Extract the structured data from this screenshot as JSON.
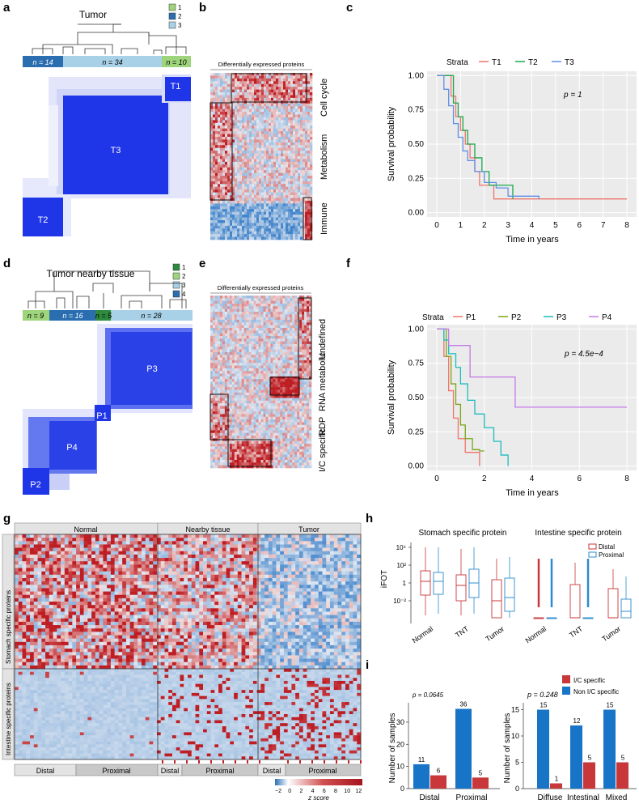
{
  "panels": {
    "a": {
      "label": "a",
      "title": "Tumor",
      "legend": [
        "1",
        "2",
        "3"
      ],
      "counts": [
        "n = 14",
        "n = 34",
        "n = 10"
      ],
      "clusters": [
        "T1",
        "T3",
        "T2"
      ]
    },
    "b": {
      "label": "b",
      "header": "Differentially expressed proteins",
      "groups": [
        "Cell cycle",
        "Metabolism",
        "Immune"
      ]
    },
    "c": {
      "label": "c",
      "strata_title": "Strata",
      "strata": [
        "T1",
        "T2",
        "T3"
      ],
      "strata_colors": [
        "#f0746b",
        "#1aa84a",
        "#5f8ee8"
      ],
      "pvalue": "p = 1",
      "ylabel": "Survival probability",
      "xlabel": "Time in years",
      "yticks": [
        "1.00",
        "0.75",
        "0.50",
        "0.25",
        "0.00"
      ],
      "xticks": [
        "0",
        "1",
        "2",
        "3",
        "4",
        "5",
        "6",
        "7",
        "8"
      ]
    },
    "d": {
      "label": "d",
      "title": "Tumor nearby tissue",
      "legend": [
        "1",
        "2",
        "3",
        "4"
      ],
      "counts": [
        "n = 9",
        "n = 16",
        "n = 5",
        "n = 28"
      ],
      "clusters": [
        "P3",
        "P1",
        "P4",
        "P2"
      ]
    },
    "e": {
      "label": "e",
      "header": "Differentially expressed proteins",
      "groups": [
        "Undefined",
        "RNA metabolic",
        "RDP",
        "I/C specific"
      ]
    },
    "f": {
      "label": "f",
      "strata_title": "Strata",
      "strata": [
        "P1",
        "P2",
        "P3",
        "P4"
      ],
      "strata_colors": [
        "#f0746b",
        "#7ba518",
        "#1cbcbc",
        "#c47be8"
      ],
      "pvalue": "p = 4.5e−4",
      "ylabel": "Survival probability",
      "xlabel": "Time in years",
      "yticks": [
        "1.00",
        "0.75",
        "0.50",
        "0.25",
        "0.00"
      ],
      "xticks": [
        "0",
        "2",
        "4",
        "6",
        "8"
      ]
    },
    "g": {
      "label": "g",
      "top": [
        "Normal",
        "Nearby tissue",
        "Tumor"
      ],
      "rowlabels": [
        "Stomach specific proteins",
        "Intestine specific proteins"
      ],
      "bottom": [
        "Distal",
        "Proximal",
        "Distal",
        "Proximal",
        "Distal",
        "Proximal"
      ],
      "colorbar_ticks": [
        "−2",
        "0",
        "2",
        "4",
        "6",
        "8",
        "10",
        "12"
      ],
      "colorbar_label": "z score"
    },
    "h": {
      "label": "h",
      "titles": [
        "Stomach specific protein",
        "Intestine specific protein"
      ],
      "legend": [
        "Distal",
        "Proximal"
      ],
      "ylabel": "iFOT",
      "yticks": [
        "10⁴",
        "10²",
        "1",
        "10⁻²"
      ],
      "xcats": [
        "Normal",
        "TNT",
        "Tumor",
        "Normal",
        "TNT",
        "Tumor"
      ]
    },
    "i": {
      "label": "i",
      "legend": [
        "I/C specific",
        "Non I/C specific"
      ],
      "pvals": [
        "p = 0.0645",
        "p = 0.248"
      ],
      "ylabel": "Number of samples",
      "yticks_left": [
        "0",
        "10",
        "20",
        "30"
      ],
      "yticks_right": [
        "0",
        "5",
        "10",
        "15"
      ]
    }
  },
  "chart_data": [
    {
      "type": "line",
      "panel": "c",
      "title": "",
      "xlabel": "Time in years",
      "ylabel": "Survival probability",
      "xlim": [
        0,
        8
      ],
      "ylim": [
        0,
        1
      ],
      "series": [
        {
          "name": "T1",
          "x": [
            0,
            0.6,
            0.8,
            1.0,
            1.2,
            1.4,
            1.6,
            1.8,
            2.0,
            2.4,
            8.0
          ],
          "y": [
            1,
            0.85,
            0.7,
            0.6,
            0.5,
            0.4,
            0.3,
            0.2,
            0.2,
            0.1,
            0.1
          ]
        },
        {
          "name": "T2",
          "x": [
            0,
            0.4,
            0.7,
            0.9,
            1.1,
            1.3,
            1.6,
            1.9,
            2.2,
            2.6,
            3.2
          ],
          "y": [
            1,
            1,
            0.8,
            0.7,
            0.6,
            0.5,
            0.4,
            0.3,
            0.2,
            0.2,
            0.1
          ]
        },
        {
          "name": "T3",
          "x": [
            0,
            0.3,
            0.5,
            0.7,
            0.9,
            1.1,
            1.3,
            1.6,
            2.0,
            2.5,
            3.0,
            4.3
          ],
          "y": [
            1,
            0.9,
            0.78,
            0.65,
            0.55,
            0.45,
            0.38,
            0.3,
            0.22,
            0.18,
            0.12,
            0.1
          ]
        }
      ]
    },
    {
      "type": "line",
      "panel": "f",
      "title": "",
      "xlabel": "Time in years",
      "ylabel": "Survival probability",
      "xlim": [
        0,
        8
      ],
      "ylim": [
        0,
        1
      ],
      "series": [
        {
          "name": "P1",
          "x": [
            0,
            0.3,
            0.5,
            0.7,
            0.9,
            1.2,
            1.6,
            1.8
          ],
          "y": [
            1,
            0.8,
            0.55,
            0.35,
            0.2,
            0.1,
            0.1,
            0
          ]
        },
        {
          "name": "P2",
          "x": [
            0,
            0.4,
            0.6,
            0.8,
            1.0,
            1.2,
            1.5,
            1.8,
            2.0
          ],
          "y": [
            1,
            0.8,
            0.6,
            0.45,
            0.3,
            0.2,
            0.12,
            0.11,
            0.11
          ]
        },
        {
          "name": "P3",
          "x": [
            0,
            0.3,
            0.5,
            0.8,
            1.0,
            1.3,
            1.6,
            2.0,
            2.4,
            2.7,
            3.0
          ],
          "y": [
            1,
            0.92,
            0.82,
            0.72,
            0.6,
            0.48,
            0.38,
            0.28,
            0.18,
            0.08,
            0
          ]
        },
        {
          "name": "P4",
          "x": [
            0,
            0.5,
            1.0,
            1.4,
            3.3,
            8.0
          ],
          "y": [
            1,
            0.88,
            0.88,
            0.65,
            0.43,
            0.43
          ]
        }
      ]
    },
    {
      "type": "bar",
      "panel": "i-left",
      "categories": [
        "Distal",
        "Proximal"
      ],
      "ylim": [
        0,
        38
      ],
      "series": [
        {
          "name": "Non I/C specific",
          "values": [
            11,
            36
          ]
        },
        {
          "name": "I/C specific",
          "values": [
            6,
            5
          ]
        }
      ],
      "labels": [
        "11",
        "6",
        "36",
        "5"
      ]
    },
    {
      "type": "bar",
      "panel": "i-right",
      "categories": [
        "Diffuse",
        "Intestinal",
        "Mixed"
      ],
      "ylim": [
        0,
        16
      ],
      "series": [
        {
          "name": "Non I/C specific",
          "values": [
            15,
            12,
            15
          ]
        },
        {
          "name": "I/C specific",
          "values": [
            1,
            5,
            5
          ]
        }
      ],
      "labels": [
        "15",
        "1",
        "12",
        "5",
        "15",
        "5"
      ]
    }
  ],
  "colors": {
    "blue": "#1432e6",
    "red": "#c01f24",
    "barBlue": "#1874c6",
    "barRed": "#c8373a",
    "lightblue": "#a8d1e8",
    "green": "#9ed47b",
    "darkblue": "#2a6eb0",
    "darkgreen": "#2d8a3e"
  }
}
